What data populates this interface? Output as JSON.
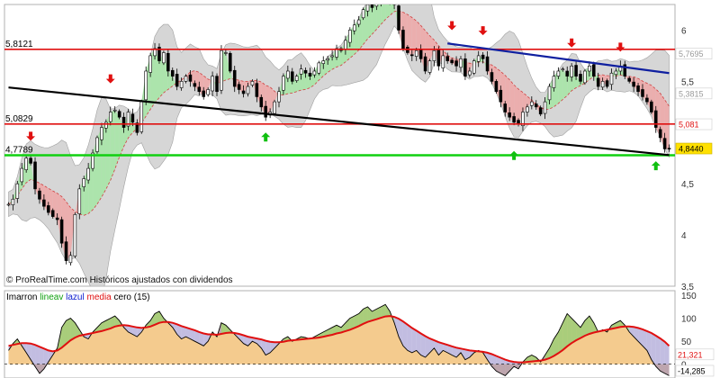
{
  "chart_data": {
    "type": "candlestick",
    "watermark": "© ProRealTime.com Históricos ajustados con dividendos",
    "price_panel": {
      "ylim": [
        3.5,
        6.25
      ],
      "y_ticks": [
        {
          "value": 6,
          "label": "6"
        },
        {
          "value": 5.5,
          "label": "5,5"
        },
        {
          "value": 4.5,
          "label": "4,5"
        },
        {
          "value": 4,
          "label": "4"
        },
        {
          "value": 3.5,
          "label": "3,5"
        }
      ],
      "horizontal_levels": [
        {
          "value": 5.8121,
          "label": "5,8121",
          "color": "#e01010"
        },
        {
          "value": 5.0829,
          "label": "5,0829",
          "color": "#e01010"
        },
        {
          "value": 4.7789,
          "label": "4,7789",
          "color": "#10d010"
        }
      ],
      "right_tags": [
        {
          "value": 5.7695,
          "label": "5,7695",
          "bg": "#ffffff",
          "fg": "#9a9a9a"
        },
        {
          "value": 5.3815,
          "label": "5,3815",
          "bg": "#ffffff",
          "fg": "#9a9a9a"
        },
        {
          "value": 5.081,
          "label": "5,081",
          "bg": "#ffffff",
          "fg": "#e01010"
        },
        {
          "value": 4.844,
          "label": "4,8440",
          "bg": "#ffe000",
          "fg": "#000000"
        }
      ],
      "trendlines": [
        {
          "from": [
            0,
            5.44
          ],
          "to": [
            149,
            4.78
          ],
          "color": "#000000"
        },
        {
          "from": [
            99,
            5.87
          ],
          "to": [
            149,
            5.58
          ],
          "color": "#1020a0"
        }
      ],
      "arrows": [
        {
          "index": 5,
          "price": 4.92,
          "dir": "down"
        },
        {
          "index": 23,
          "price": 5.48,
          "dir": "down"
        },
        {
          "index": 58,
          "price": 5.0,
          "dir": "up"
        },
        {
          "index": 100,
          "price": 6.0,
          "dir": "down"
        },
        {
          "index": 107,
          "price": 5.95,
          "dir": "down"
        },
        {
          "index": 114,
          "price": 4.82,
          "dir": "up"
        },
        {
          "index": 127,
          "price": 5.83,
          "dir": "down"
        },
        {
          "index": 138,
          "price": 5.79,
          "dir": "down"
        },
        {
          "index": 146,
          "price": 4.72,
          "dir": "up"
        }
      ],
      "candles": {
        "closes": [
          4.3,
          4.35,
          4.5,
          4.65,
          4.75,
          4.7,
          4.45,
          4.35,
          4.28,
          4.22,
          4.18,
          4.15,
          3.92,
          3.75,
          3.8,
          4.2,
          4.45,
          4.55,
          4.65,
          4.8,
          4.95,
          5.05,
          5.1,
          5.2,
          5.22,
          5.15,
          5.05,
          5.2,
          5.1,
          5.0,
          5.3,
          5.6,
          5.75,
          5.82,
          5.7,
          5.78,
          5.6,
          5.55,
          5.45,
          5.5,
          5.55,
          5.5,
          5.45,
          5.4,
          5.35,
          5.42,
          5.55,
          5.4,
          5.8,
          5.78,
          5.6,
          5.45,
          5.42,
          5.38,
          5.45,
          5.5,
          5.35,
          5.25,
          5.15,
          5.2,
          5.3,
          5.4,
          5.55,
          5.6,
          5.5,
          5.55,
          5.62,
          5.58,
          5.55,
          5.6,
          5.68,
          5.7,
          5.72,
          5.75,
          5.82,
          5.8,
          5.9,
          6.0,
          6.05,
          6.1,
          6.2,
          6.25,
          6.22,
          6.28,
          6.3,
          6.32,
          6.3,
          6.25,
          6.0,
          5.82,
          5.78,
          5.75,
          5.8,
          5.72,
          5.6,
          5.7,
          5.8,
          5.65,
          5.75,
          5.7,
          5.68,
          5.65,
          5.72,
          5.55,
          5.6,
          5.7,
          5.75,
          5.72,
          5.6,
          5.5,
          5.4,
          5.3,
          5.2,
          5.15,
          5.1,
          5.08,
          5.2,
          5.25,
          5.3,
          5.25,
          5.18,
          5.3,
          5.45,
          5.55,
          5.6,
          5.62,
          5.55,
          5.65,
          5.55,
          5.5,
          5.6,
          5.65,
          5.55,
          5.45,
          5.5,
          5.45,
          5.58,
          5.6,
          5.65,
          5.55,
          5.5,
          5.45,
          5.4,
          5.35,
          5.3,
          5.2,
          5.05,
          4.95,
          4.84,
          4.84
        ],
        "volatility": 0.05
      },
      "moving_average_label": "",
      "envelope_label": ""
    },
    "indicator_panel": {
      "legend": [
        {
          "text": "Imarron",
          "color": "#000000"
        },
        {
          "text": "lineav",
          "color": "#10a010"
        },
        {
          "text": "lazul",
          "color": "#1020d0"
        },
        {
          "text": "media",
          "color": "#e01010"
        },
        {
          "text": "cero",
          "color": "#000000"
        },
        {
          "text": "(15)",
          "color": "#000000"
        }
      ],
      "ylim": [
        -30,
        160
      ],
      "y_ticks": [
        {
          "value": 150,
          "label": "150"
        },
        {
          "value": 100,
          "label": "100"
        },
        {
          "value": 50,
          "label": "50"
        },
        {
          "value": 0,
          "label": "0"
        }
      ],
      "right_tags": [
        {
          "value": 21.321,
          "label": "21,321",
          "bg": "#ffffff",
          "fg": "#e01010"
        },
        {
          "value": -14.285,
          "label": "-14,285",
          "bg": "#ffffff",
          "fg": "#000000"
        }
      ],
      "values": [
        30,
        45,
        55,
        40,
        25,
        10,
        -5,
        -20,
        -10,
        5,
        20,
        35,
        80,
        95,
        100,
        90,
        75,
        60,
        55,
        70,
        80,
        90,
        95,
        100,
        105,
        95,
        80,
        70,
        65,
        60,
        70,
        85,
        95,
        110,
        115,
        100,
        90,
        80,
        65,
        55,
        60,
        55,
        50,
        45,
        40,
        50,
        70,
        60,
        90,
        85,
        75,
        65,
        55,
        45,
        40,
        50,
        45,
        35,
        20,
        25,
        35,
        45,
        55,
        60,
        50,
        55,
        60,
        58,
        55,
        60,
        65,
        70,
        75,
        80,
        85,
        80,
        90,
        100,
        105,
        110,
        120,
        125,
        115,
        120,
        125,
        130,
        115,
        90,
        60,
        40,
        30,
        25,
        30,
        20,
        15,
        25,
        35,
        20,
        30,
        25,
        20,
        15,
        25,
        10,
        15,
        25,
        30,
        25,
        10,
        -5,
        -15,
        -20,
        -25,
        -15,
        -5,
        -10,
        5,
        15,
        20,
        15,
        5,
        20,
        35,
        55,
        70,
        90,
        110,
        100,
        90,
        80,
        95,
        105,
        90,
        70,
        75,
        70,
        85,
        90,
        95,
        85,
        70,
        60,
        50,
        40,
        30,
        10,
        -5,
        -15,
        -20,
        -25
      ],
      "signal": [
        40,
        42,
        44,
        46,
        46,
        45,
        42,
        38,
        34,
        30,
        28,
        30,
        36,
        44,
        52,
        58,
        62,
        64,
        66,
        68,
        70,
        72,
        75,
        78,
        82,
        84,
        85,
        84,
        82,
        80,
        79,
        80,
        82,
        86,
        90,
        92,
        92,
        90,
        87,
        83,
        80,
        77,
        74,
        70,
        67,
        65,
        65,
        64,
        66,
        68,
        69,
        68,
        66,
        63,
        60,
        58,
        56,
        54,
        51,
        49,
        48,
        48,
        49,
        51,
        52,
        53,
        54,
        55,
        56,
        57,
        58,
        60,
        62,
        64,
        67,
        69,
        72,
        75,
        79,
        83,
        88,
        92,
        95,
        98,
        101,
        104,
        105,
        103,
        99,
        93,
        86,
        79,
        73,
        67,
        61,
        56,
        52,
        48,
        45,
        42,
        39,
        36,
        34,
        32,
        30,
        29,
        28,
        27,
        25,
        22,
        18,
        14,
        10,
        7,
        5,
        4,
        4,
        5,
        6,
        7,
        8,
        10,
        13,
        18,
        24,
        31,
        39,
        46,
        52,
        57,
        62,
        66,
        69,
        71,
        73,
        75,
        77,
        79,
        81,
        82,
        82,
        81,
        79,
        76,
        72,
        68,
        62,
        56,
        49,
        40
      ]
    }
  }
}
